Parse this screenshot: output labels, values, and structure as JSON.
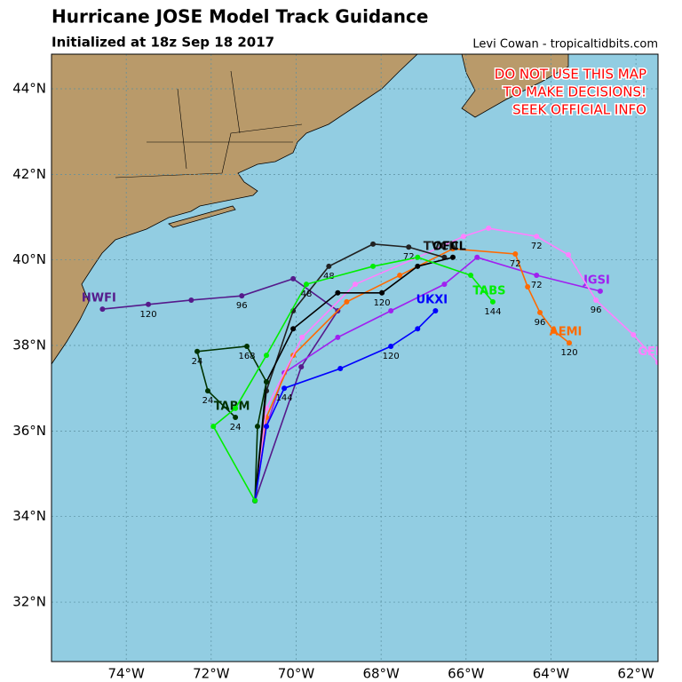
{
  "header": {
    "title": "Hurricane JOSE Model Track Guidance",
    "subtitle": "Initialized at 18z Sep 18 2017",
    "credit": "Levi Cowan - tropicaltidbits.com"
  },
  "warning": [
    "DO NOT USE THIS MAP",
    "TO MAKE DECISIONS!",
    "SEEK OFFICIAL INFO"
  ],
  "map": {
    "lonlim": [
      -75.76,
      -61.48
    ],
    "latlim": [
      30.61,
      44.81
    ],
    "lon_ticks": [
      {
        "value": -74,
        "label": "74°W"
      },
      {
        "value": -72,
        "label": "72°W"
      },
      {
        "value": -70,
        "label": "70°W"
      },
      {
        "value": -68,
        "label": "68°W"
      },
      {
        "value": -66,
        "label": "66°W"
      },
      {
        "value": -64,
        "label": "64°W"
      },
      {
        "value": -62,
        "label": "62°W"
      }
    ],
    "lat_ticks": [
      {
        "value": 32,
        "label": "32°N"
      },
      {
        "value": 34,
        "label": "34°N"
      },
      {
        "value": 36,
        "label": "36°N"
      },
      {
        "value": 38,
        "label": "38°N"
      },
      {
        "value": 40,
        "label": "40°N"
      },
      {
        "value": 42,
        "label": "42°N"
      },
      {
        "value": 44,
        "label": "44°N"
      }
    ],
    "grid": true
  },
  "tracks": [
    {
      "name": "HWFI",
      "color": "#551a8b",
      "lon": [
        -70.97,
        -69.88,
        -69.02,
        -70.07,
        -71.28,
        -72.47,
        -73.48,
        -74.56
      ],
      "lat": [
        34.37,
        37.5,
        38.81,
        39.56,
        39.16,
        39.06,
        38.96,
        38.85
      ],
      "hours": [
        null,
        null,
        null,
        null,
        "96",
        null,
        "120",
        null
      ]
    },
    {
      "name": "JGSI",
      "color": "#a020f0",
      "lon": [
        -70.97,
        -70.7,
        -70.28,
        -69.02,
        -67.77,
        -66.51,
        -65.74,
        -64.34,
        -62.84
      ],
      "lat": [
        34.37,
        36.11,
        37.36,
        38.19,
        38.81,
        39.43,
        40.06,
        39.64,
        39.27
      ],
      "hours": [
        null,
        null,
        null,
        null,
        null,
        null,
        null,
        "72",
        null
      ]
    },
    {
      "name": "AEMI",
      "color": "#ff6a00",
      "lon": [
        -70.97,
        -70.7,
        -70.07,
        -68.81,
        -67.56,
        -66.31,
        -64.84,
        -64.55,
        -64.26,
        -63.94,
        -63.57
      ],
      "lat": [
        34.37,
        36.32,
        37.77,
        39.02,
        39.64,
        40.26,
        40.14,
        39.37,
        38.77,
        38.35,
        38.06
      ],
      "hours": [
        null,
        null,
        null,
        null,
        null,
        null,
        "72",
        null,
        "96",
        null,
        "120"
      ]
    },
    {
      "name": "GEMI",
      "color": "#ff80ff",
      "lon": [
        -70.97,
        -70.7,
        -69.86,
        -68.61,
        -67.14,
        -66.06,
        -65.47,
        -64.34,
        -63.59,
        -62.94,
        -62.06,
        -61.48
      ],
      "lat": [
        34.37,
        36.53,
        38.19,
        39.43,
        40.06,
        40.55,
        40.74,
        40.55,
        40.12,
        39.06,
        38.25,
        37.6
      ],
      "hours": [
        null,
        null,
        null,
        null,
        null,
        null,
        null,
        "72",
        null,
        "96",
        null,
        null
      ]
    },
    {
      "name": "TVCN",
      "color": "#222222",
      "lon": [
        -70.97,
        -70.7,
        -70.07,
        -69.23,
        -68.19,
        -67.35,
        -66.51
      ],
      "lat": [
        34.37,
        36.94,
        38.81,
        39.85,
        40.37,
        40.3,
        40.06
      ],
      "hours": [
        null,
        null,
        null,
        "48",
        null,
        "72",
        null
      ]
    },
    {
      "name": "OFCL",
      "color": "#000000",
      "lon": [
        -70.97,
        -70.7,
        -70.07,
        -69.02,
        -67.98,
        -67.14,
        -66.31
      ],
      "lat": [
        34.37,
        37.15,
        38.39,
        39.23,
        39.23,
        39.85,
        40.06
      ],
      "hours": [
        null,
        null,
        null,
        null,
        "120",
        null,
        null
      ]
    },
    {
      "name": "TABM",
      "color": "#003300",
      "lon": [
        -70.97,
        -70.91,
        -70.7,
        -71.16,
        -72.33,
        -72.08,
        -71.43
      ],
      "lat": [
        34.37,
        36.11,
        37.15,
        37.98,
        37.86,
        36.94,
        36.32
      ],
      "hours": [
        null,
        null,
        null,
        "168",
        "24",
        "24",
        "24"
      ]
    },
    {
      "name": "UKXI",
      "color": "#0000ff",
      "lon": [
        -70.97,
        -70.7,
        -70.28,
        -68.96,
        -67.77,
        -67.14,
        -66.72
      ],
      "lat": [
        34.37,
        36.11,
        37.0,
        37.46,
        37.98,
        38.39,
        38.81
      ],
      "hours": [
        null,
        null,
        "144",
        null,
        "120",
        null,
        null
      ]
    },
    {
      "name": "TABS",
      "color": "#00ee00",
      "lon": [
        -70.97,
        -71.95,
        -71.43,
        -70.7,
        -69.76,
        -68.19,
        -67.14,
        -65.89,
        -65.37
      ],
      "lat": [
        34.37,
        36.11,
        36.53,
        37.77,
        39.43,
        39.85,
        40.06,
        39.64,
        39.02
      ],
      "hours": [
        null,
        null,
        null,
        null,
        "48",
        null,
        null,
        null,
        "144"
      ]
    }
  ]
}
